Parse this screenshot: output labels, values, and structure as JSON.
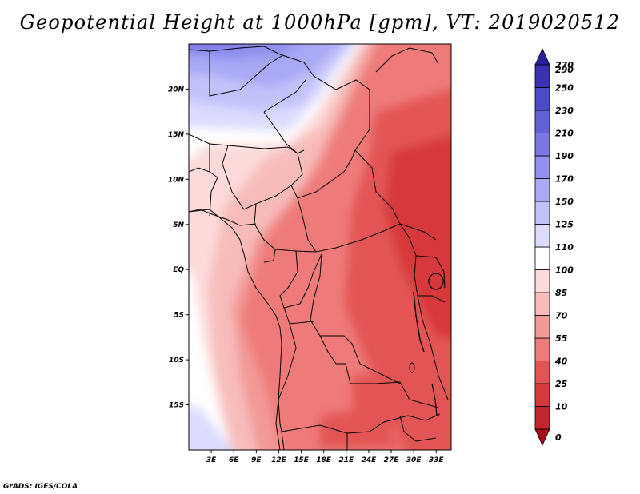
{
  "title": "Geopotential Height at 1000hPa [gpm], VT: 2019020512",
  "credit": "GrADS: IGES/COLA",
  "map": {
    "variable": "Geopotential Height at 1000hPa",
    "units": "gpm",
    "valid_time": "2019020512",
    "lon_range": [
      0,
      35
    ],
    "lat_range": [
      -20,
      25
    ],
    "x_ticks": [
      {
        "lon": 3,
        "label": "3E"
      },
      {
        "lon": 6,
        "label": "6E"
      },
      {
        "lon": 9,
        "label": "9E"
      },
      {
        "lon": 12,
        "label": "12E"
      },
      {
        "lon": 15,
        "label": "15E"
      },
      {
        "lon": 18,
        "label": "18E"
      },
      {
        "lon": 21,
        "label": "21E"
      },
      {
        "lon": 24,
        "label": "24E"
      },
      {
        "lon": 27,
        "label": "27E"
      },
      {
        "lon": 30,
        "label": "30E"
      },
      {
        "lon": 33,
        "label": "33E"
      }
    ],
    "y_ticks": [
      {
        "lat": 20,
        "label": "20N"
      },
      {
        "lat": 15,
        "label": "15N"
      },
      {
        "lat": 10,
        "label": "10N"
      },
      {
        "lat": 5,
        "label": "5N"
      },
      {
        "lat": 0,
        "label": "EQ"
      },
      {
        "lat": -5,
        "label": "5S"
      },
      {
        "lat": -10,
        "label": "10S"
      },
      {
        "lat": -15,
        "label": "15S"
      }
    ]
  },
  "colorbar": {
    "levels": [
      "0",
      "10",
      "25",
      "40",
      "55",
      "70",
      "85",
      "100",
      "110",
      "125",
      "150",
      "170",
      "190",
      "210",
      "230",
      "250",
      "270",
      "290"
    ],
    "colors": [
      "#a50f15",
      "#c0272d",
      "#d6393b",
      "#e35554",
      "#ee7b79",
      "#f29a98",
      "#f7bcba",
      "#fbdad9",
      "#ffffff",
      "#dcdcff",
      "#c2c2fa",
      "#a9a9f5",
      "#9090ee",
      "#7b78e3",
      "#6262d6",
      "#4b4bc8",
      "#3a32b4",
      "#29209c"
    ]
  }
}
